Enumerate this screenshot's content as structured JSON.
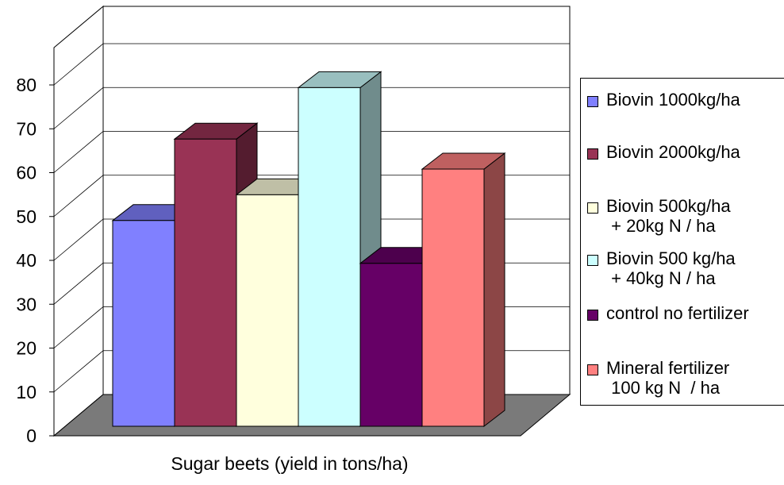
{
  "chart_data": {
    "type": "bar",
    "style": "3d-clustered",
    "categories": [
      "Sugar beets (yield in tons/ha)"
    ],
    "xlabel": "Sugar beets (yield in tons/ha)",
    "ylabel": "",
    "ylim": [
      0,
      80
    ],
    "yticks": [
      0,
      10,
      20,
      30,
      40,
      50,
      60,
      70,
      80
    ],
    "grid": true,
    "legend_position": "right",
    "series": [
      {
        "name": "Biovin 1000kg/ha",
        "name_lines": [
          "Biovin 1000kg/ha"
        ],
        "values": [
          48
        ],
        "color": "#8080ff"
      },
      {
        "name": "Biovin 2000kg/ha",
        "name_lines": [
          "Biovin 2000kg/ha"
        ],
        "values": [
          67
        ],
        "color": "#993355"
      },
      {
        "name": "Biovin 500kg/ha + 20kg N / ha",
        "name_lines": [
          "Biovin 500kg/ha",
          " + 20kg N / ha"
        ],
        "values": [
          54
        ],
        "color": "#ffffdd"
      },
      {
        "name": "Biovin 500 kg/ha + 40kg N / ha",
        "name_lines": [
          "Biovin 500 kg/ha",
          " + 40kg N / ha"
        ],
        "values": [
          79
        ],
        "color": "#ccffff"
      },
      {
        "name": "control no fertilizer",
        "name_lines": [
          "control no fertilizer"
        ],
        "values": [
          38
        ],
        "color": "#660066"
      },
      {
        "name": "Mineral fertilizer 100 kg N / ha",
        "name_lines": [
          "Mineral fertilizer",
          " 100 kg N  / ha"
        ],
        "values": [
          60
        ],
        "color": "#ff8080"
      }
    ]
  }
}
